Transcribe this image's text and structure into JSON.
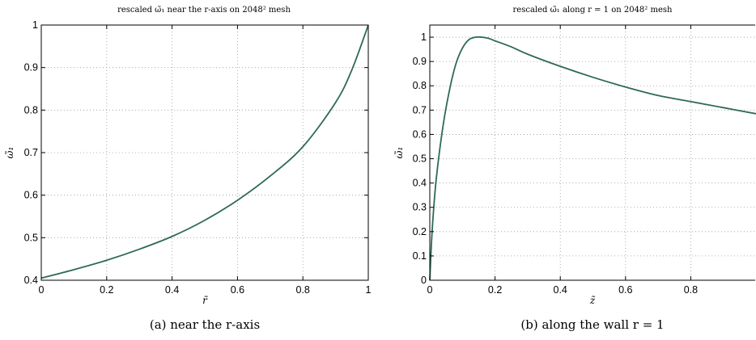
{
  "chart_data": [
    {
      "type": "line",
      "title": "rescaled ω̃₁ near the r-axis on 2048² mesh",
      "xlabel": "r̃",
      "ylabel": "ω̃₁",
      "xlim": [
        0,
        1
      ],
      "ylim": [
        0.4,
        1
      ],
      "xticks": [
        "0",
        "0.2",
        "0.4",
        "0.6",
        "0.8",
        "1"
      ],
      "yticks": [
        "0.4",
        "0.5",
        "0.6",
        "0.7",
        "0.8",
        "0.9",
        "1"
      ],
      "grid": true,
      "caption": "(a)  near the r-axis",
      "color": "#2e6b52",
      "series": [
        {
          "x": [
            0,
            0.1,
            0.2,
            0.3,
            0.4,
            0.5,
            0.6,
            0.7,
            0.8,
            0.9,
            0.95,
            1.0
          ],
          "y": [
            0.405,
            0.425,
            0.447,
            0.473,
            0.503,
            0.541,
            0.588,
            0.645,
            0.714,
            0.818,
            0.895,
            1.0
          ]
        }
      ]
    },
    {
      "type": "line",
      "title": "rescaled ω̃₁ along r = 1 on 2048² mesh",
      "xlabel": "z̃",
      "ylabel": "ω̃₁",
      "xlim": [
        0,
        1
      ],
      "ylim": [
        0,
        1.05
      ],
      "xticks": [
        "0",
        "0.2",
        "0.4",
        "0.6",
        "0.8"
      ],
      "yticks": [
        "0",
        "0.1",
        "0.2",
        "0.3",
        "0.4",
        "0.5",
        "0.6",
        "0.7",
        "0.8",
        "0.9",
        "1"
      ],
      "grid": true,
      "caption": "(b)  along the wall r = 1",
      "color": "#2e6b52",
      "series": [
        {
          "x": [
            0,
            0.005,
            0.01,
            0.02,
            0.04,
            0.06,
            0.08,
            0.1,
            0.12,
            0.14,
            0.16,
            0.18,
            0.2,
            0.25,
            0.3,
            0.4,
            0.5,
            0.6,
            0.7,
            0.8,
            0.9,
            1.0
          ],
          "y": [
            0.0,
            0.15,
            0.26,
            0.42,
            0.63,
            0.78,
            0.89,
            0.955,
            0.99,
            1.0,
            1.0,
            0.995,
            0.985,
            0.96,
            0.93,
            0.88,
            0.835,
            0.795,
            0.76,
            0.735,
            0.71,
            0.685
          ]
        }
      ]
    }
  ]
}
